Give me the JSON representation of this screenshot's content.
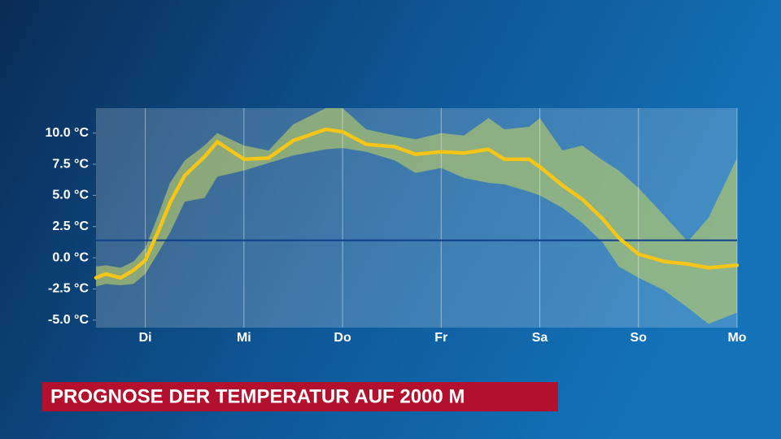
{
  "chart_data": {
    "type": "line",
    "title": "PROGNOSE DER TEMPERATUR AUF 2000 M",
    "x": [
      0.5,
      0.6,
      0.75,
      0.88,
      1.0,
      1.13,
      1.25,
      1.4,
      1.6,
      1.73,
      2.0,
      2.25,
      2.5,
      2.83,
      3.0,
      3.24,
      3.53,
      3.74,
      4.0,
      4.23,
      4.48,
      4.64,
      4.89,
      5.0,
      5.23,
      5.43,
      5.64,
      5.8,
      6.0,
      6.26,
      6.5,
      6.71,
      7.0
    ],
    "line": {
      "color": "#f5c518",
      "values": [
        -1.6,
        -1.3,
        -1.6,
        -1.0,
        -0.2,
        2.1,
        4.4,
        6.6,
        8.1,
        9.3,
        7.9,
        8.0,
        9.4,
        10.3,
        10.1,
        9.1,
        8.9,
        8.3,
        8.5,
        8.4,
        8.7,
        7.9,
        7.9,
        7.3,
        5.8,
        4.7,
        3.1,
        1.6,
        0.3,
        -0.3,
        -0.5,
        -0.8,
        -0.6
      ]
    },
    "band": {
      "color": "#b5c96a",
      "upper": [
        -0.7,
        -0.6,
        -0.8,
        -0.3,
        0.8,
        3.4,
        6.0,
        7.8,
        9.0,
        10.0,
        9.0,
        8.6,
        10.7,
        12.0,
        12.0,
        10.3,
        9.8,
        9.5,
        10.0,
        9.8,
        11.2,
        10.3,
        10.5,
        11.2,
        8.6,
        9.0,
        7.8,
        7.0,
        5.6,
        3.4,
        1.3,
        3.2,
        8.0
      ],
      "lower": [
        -2.3,
        -2.1,
        -2.2,
        -2.1,
        -1.3,
        0.4,
        2.0,
        4.5,
        4.8,
        6.5,
        7.0,
        7.6,
        8.2,
        8.7,
        8.8,
        8.5,
        7.8,
        6.8,
        7.2,
        6.4,
        6.0,
        5.9,
        5.3,
        5.0,
        4.0,
        2.8,
        1.2,
        -0.7,
        -1.6,
        -2.6,
        -4.0,
        -5.3,
        -4.4
      ]
    },
    "hline": {
      "value": 1.4,
      "color": "#0d3f8a"
    },
    "xlim": [
      0.5,
      7.0
    ],
    "xticks": [
      {
        "value": 1,
        "label": "Di"
      },
      {
        "value": 2,
        "label": "Mi"
      },
      {
        "value": 3,
        "label": "Do"
      },
      {
        "value": 4,
        "label": "Fr"
      },
      {
        "value": 5,
        "label": "Sa"
      },
      {
        "value": 6,
        "label": "So"
      },
      {
        "value": 7,
        "label": "Mo"
      }
    ],
    "ylim": [
      -5.6,
      12.0
    ],
    "yticks": [
      {
        "value": -5,
        "label": "-5.0 °C"
      },
      {
        "value": -2.5,
        "label": "-2.5 °C"
      },
      {
        "value": 0,
        "label": "0.0 °C"
      },
      {
        "value": 2.5,
        "label": "2.5 °C"
      },
      {
        "value": 5,
        "label": "5.0 °C"
      },
      {
        "value": 7.5,
        "label": "7.5 °C"
      },
      {
        "value": 10,
        "label": "10.0 °C"
      }
    ],
    "grid": true
  }
}
